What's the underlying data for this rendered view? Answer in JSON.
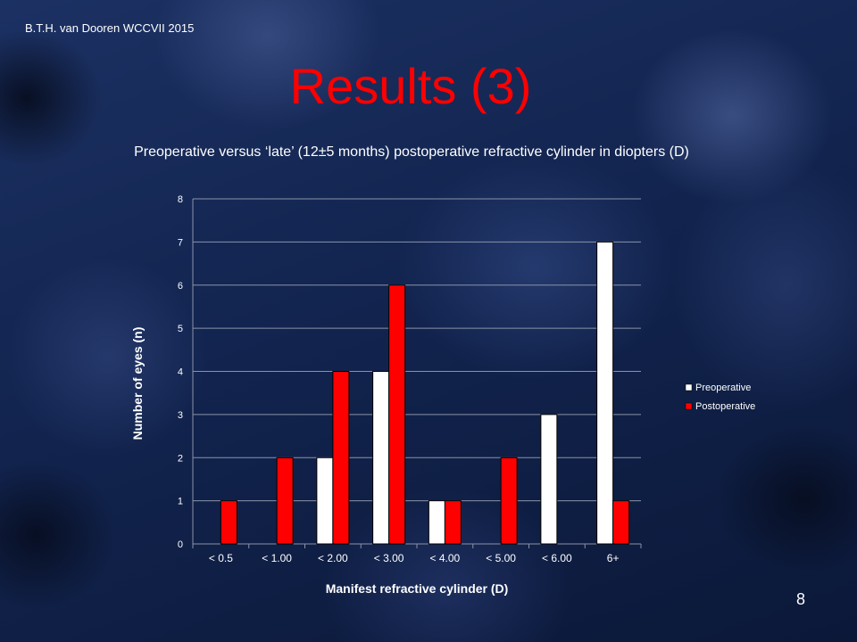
{
  "slide": {
    "credit": "B.T.H. van Dooren WCCVII 2015",
    "title": "Results (3)",
    "subtitle": "Preoperative versus ‘late’ (12±5 months) postoperative refractive cylinder in diopters (D)",
    "page_number": "8"
  },
  "colors": {
    "title": "#ff0000",
    "preoperative": "#ffffff",
    "postoperative": "#ff0000",
    "text": "#ffffff"
  },
  "chart_data": {
    "type": "bar",
    "title": "",
    "xlabel": "Manifest refractive cylinder (D)",
    "ylabel": "Number of eyes (n)",
    "categories": [
      "< 0.5",
      "< 1.00",
      "< 2.00",
      "< 3.00",
      "< 4.00",
      "< 5.00",
      "< 6.00",
      "6+"
    ],
    "series": [
      {
        "name": "Preoperative",
        "color": "#ffffff",
        "values": [
          0,
          0,
          2,
          4,
          1,
          0,
          3,
          7
        ]
      },
      {
        "name": "Postoperative",
        "color": "#ff0000",
        "values": [
          1,
          2,
          4,
          6,
          1,
          2,
          0,
          1
        ]
      }
    ],
    "ylim": [
      0,
      8
    ],
    "yticks": [
      "0",
      "1",
      "2",
      "3",
      "4",
      "5",
      "6",
      "7",
      "8"
    ],
    "grid": true,
    "legend": "right"
  }
}
